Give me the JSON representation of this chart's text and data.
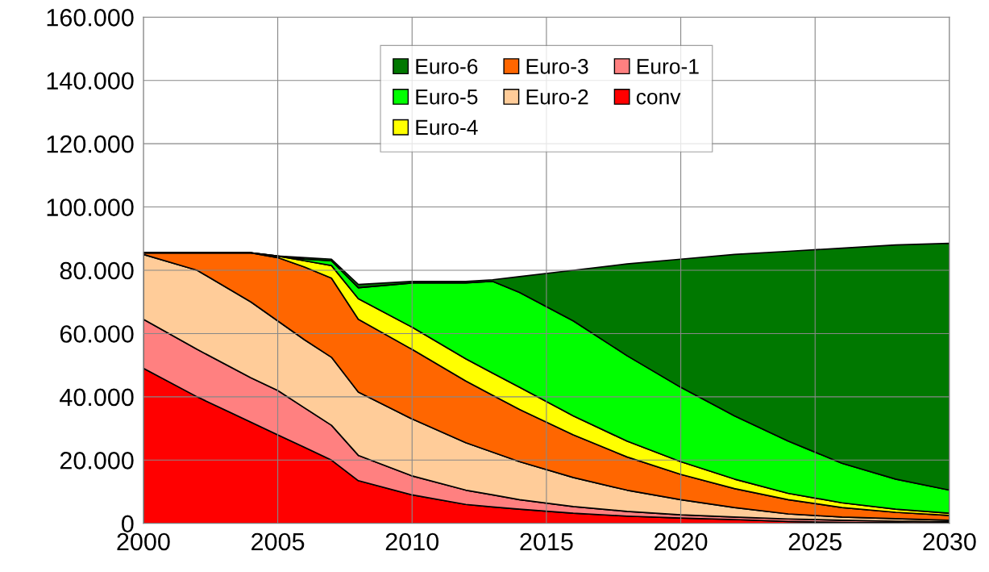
{
  "chart_data": {
    "type": "area",
    "stacked": true,
    "x": [
      2000,
      2002,
      2004,
      2005,
      2006,
      2007,
      2008,
      2010,
      2012,
      2013,
      2014,
      2016,
      2018,
      2020,
      2022,
      2024,
      2026,
      2028,
      2030
    ],
    "series": [
      {
        "name": "conv",
        "color": "#ff0000",
        "values": [
          49000,
          40000,
          32000,
          28000,
          24000,
          20000,
          13500,
          9000,
          6000,
          5200,
          4500,
          3200,
          2300,
          1700,
          1200,
          600,
          300,
          200,
          100
        ]
      },
      {
        "name": "Euro-1",
        "color": "#ff8080",
        "values": [
          15500,
          15000,
          14000,
          14000,
          12500,
          11000,
          8000,
          6000,
          4500,
          3800,
          3000,
          2100,
          1500,
          1000,
          800,
          800,
          700,
          500,
          400
        ]
      },
      {
        "name": "Euro-2",
        "color": "#ffcc99",
        "values": [
          20500,
          25000,
          24000,
          22000,
          21500,
          21500,
          20000,
          18000,
          15000,
          13500,
          12000,
          9200,
          6700,
          4800,
          3000,
          1600,
          1000,
          800,
          500
        ]
      },
      {
        "name": "Euro-3",
        "color": "#ff6600",
        "values": [
          500,
          5500,
          15500,
          20000,
          23000,
          25000,
          23000,
          22000,
          19500,
          18000,
          16500,
          13500,
          10500,
          8000,
          6000,
          4500,
          3000,
          2000,
          1500
        ]
      },
      {
        "name": "Euro-4",
        "color": "#ffff00",
        "values": [
          0,
          0,
          0,
          500,
          2000,
          4000,
          6500,
          7000,
          7000,
          7000,
          7000,
          6000,
          5000,
          4000,
          3000,
          2000,
          1500,
          1000,
          700
        ]
      },
      {
        "name": "Euro-5",
        "color": "#00ff00",
        "values": [
          0,
          0,
          0,
          0,
          500,
          1500,
          3500,
          14000,
          24000,
          29000,
          30000,
          30000,
          27000,
          23500,
          20000,
          16500,
          12500,
          9500,
          7300
        ]
      },
      {
        "name": "Euro-6",
        "color": "#007800",
        "values": [
          0,
          0,
          0,
          0,
          500,
          500,
          1000,
          500,
          500,
          500,
          5000,
          16000,
          29000,
          40500,
          51000,
          60000,
          68000,
          74000,
          78000
        ]
      }
    ],
    "xlim": [
      2000,
      2030
    ],
    "xticks": [
      2000,
      2005,
      2010,
      2015,
      2020,
      2025,
      2030
    ],
    "ylim": [
      0,
      160000
    ],
    "yticks": [
      {
        "value": 0,
        "label": "0"
      },
      {
        "value": 20000,
        "label": "20.000"
      },
      {
        "value": 40000,
        "label": "40.000"
      },
      {
        "value": 60000,
        "label": "60.000"
      },
      {
        "value": 80000,
        "label": "80.000"
      },
      {
        "value": 100000,
        "label": "100.000"
      },
      {
        "value": 120000,
        "label": "120.000"
      },
      {
        "value": 140000,
        "label": "140.000"
      },
      {
        "value": 160000,
        "label": "160.000"
      }
    ],
    "grid": true,
    "legend": "top"
  }
}
